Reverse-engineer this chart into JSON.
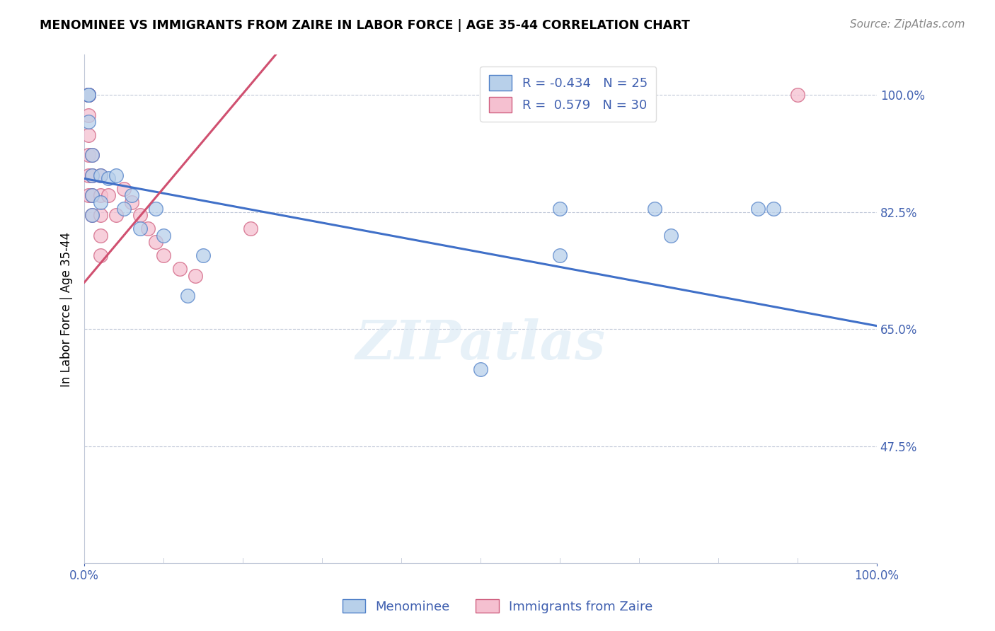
{
  "title": "MENOMINEE VS IMMIGRANTS FROM ZAIRE IN LABOR FORCE | AGE 35-44 CORRELATION CHART",
  "source": "Source: ZipAtlas.com",
  "ylabel": "In Labor Force | Age 35-44",
  "xlim": [
    0.0,
    1.0
  ],
  "ylim": [
    0.3,
    1.06
  ],
  "yticks": [
    0.475,
    0.65,
    0.825,
    1.0
  ],
  "ytick_labels": [
    "47.5%",
    "65.0%",
    "82.5%",
    "100.0%"
  ],
  "blue_R": -0.434,
  "blue_N": 25,
  "pink_R": 0.579,
  "pink_N": 30,
  "blue_label": "Menominee",
  "pink_label": "Immigrants from Zaire",
  "blue_color": "#b8d0ea",
  "pink_color": "#f5c0d0",
  "blue_edge_color": "#5080c8",
  "pink_edge_color": "#d06080",
  "blue_line_color": "#4070c8",
  "pink_line_color": "#d05070",
  "watermark_text": "ZIPatlas",
  "blue_x": [
    0.005,
    0.005,
    0.005,
    0.01,
    0.01,
    0.01,
    0.01,
    0.02,
    0.02,
    0.03,
    0.04,
    0.05,
    0.06,
    0.07,
    0.09,
    0.1,
    0.13,
    0.15,
    0.5,
    0.6,
    0.72,
    0.74,
    0.85,
    0.87,
    0.6
  ],
  "blue_y": [
    1.0,
    1.0,
    0.96,
    0.91,
    0.88,
    0.85,
    0.82,
    0.88,
    0.84,
    0.875,
    0.88,
    0.83,
    0.85,
    0.8,
    0.83,
    0.79,
    0.7,
    0.76,
    0.59,
    0.83,
    0.83,
    0.79,
    0.83,
    0.83,
    0.76
  ],
  "pink_x": [
    0.005,
    0.005,
    0.005,
    0.005,
    0.005,
    0.005,
    0.005,
    0.005,
    0.005,
    0.01,
    0.01,
    0.01,
    0.01,
    0.02,
    0.02,
    0.02,
    0.02,
    0.02,
    0.03,
    0.04,
    0.05,
    0.06,
    0.07,
    0.08,
    0.09,
    0.1,
    0.12,
    0.14,
    0.21,
    0.9
  ],
  "pink_y": [
    1.0,
    1.0,
    1.0,
    1.0,
    0.97,
    0.94,
    0.91,
    0.88,
    0.85,
    0.91,
    0.88,
    0.85,
    0.82,
    0.88,
    0.85,
    0.82,
    0.79,
    0.76,
    0.85,
    0.82,
    0.86,
    0.84,
    0.82,
    0.8,
    0.78,
    0.76,
    0.74,
    0.73,
    0.8,
    1.0
  ],
  "blue_line_x0": 0.0,
  "blue_line_y0": 0.875,
  "blue_line_x1": 1.0,
  "blue_line_y1": 0.655,
  "pink_line_x0": 0.0,
  "pink_line_y0": 0.72,
  "pink_line_x1": 0.22,
  "pink_line_y1": 1.03
}
